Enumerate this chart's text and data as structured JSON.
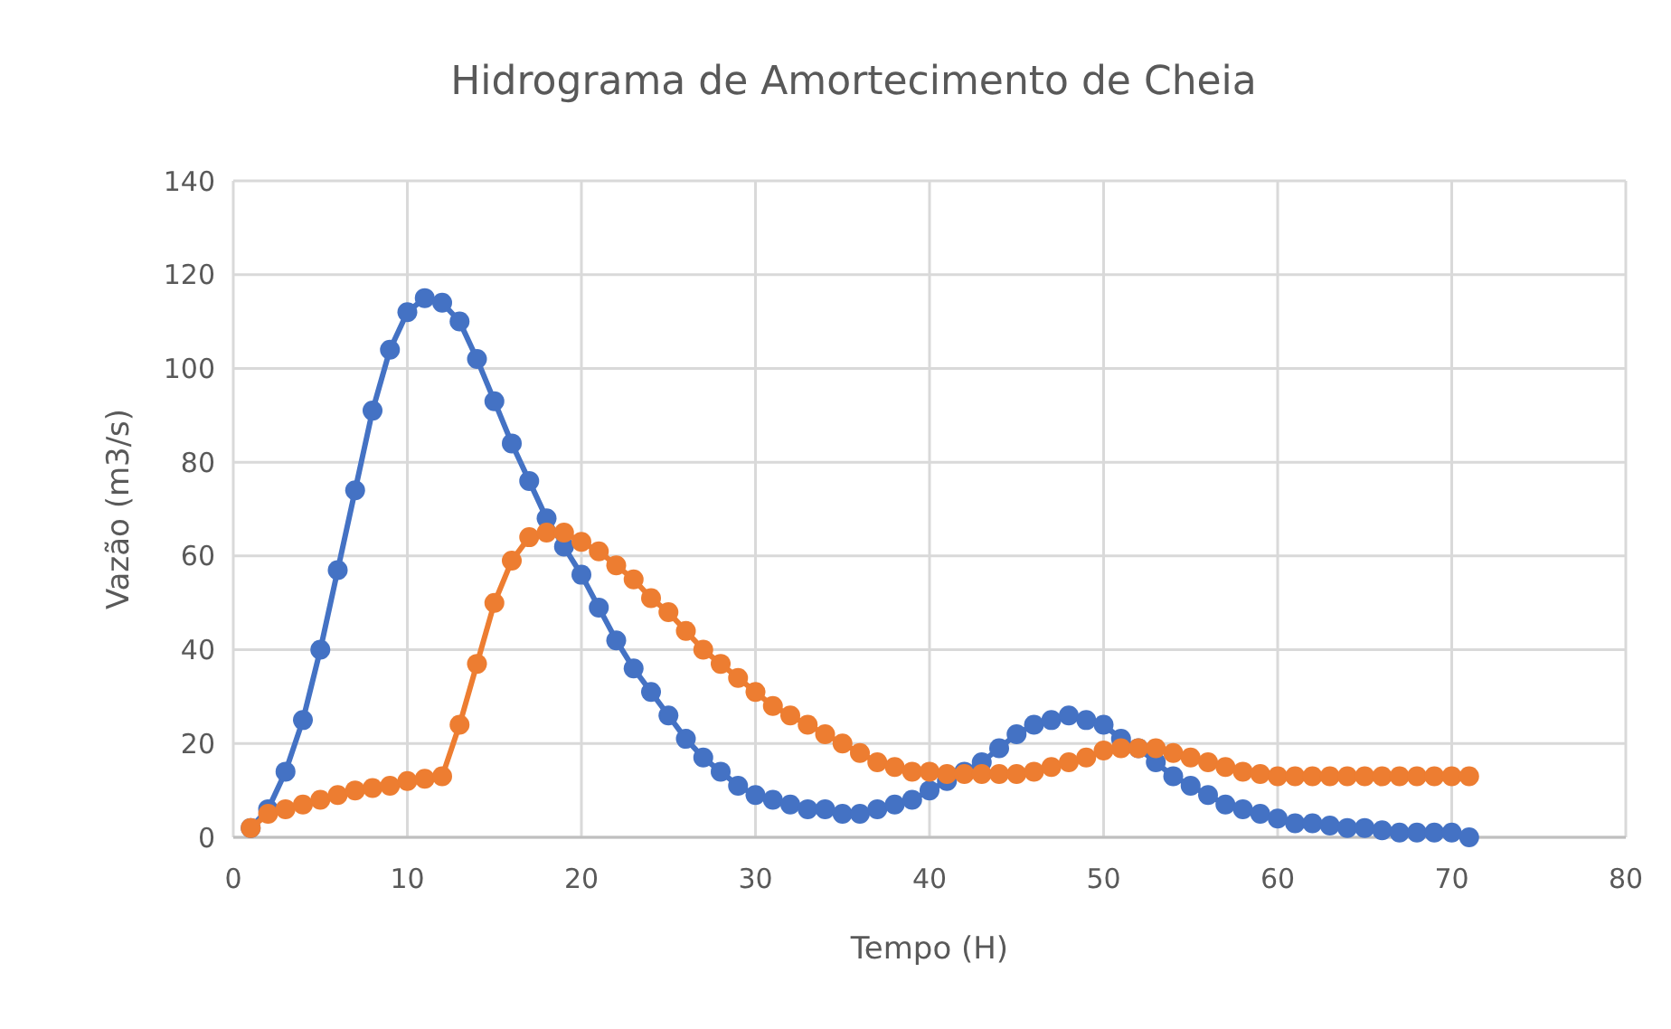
{
  "chart_data": {
    "type": "line",
    "title": "Hidrograma de Amortecimento de Cheia",
    "xlabel": "Tempo (H)",
    "ylabel": "Vazão (m3/s)",
    "x": [
      1,
      2,
      3,
      4,
      5,
      6,
      7,
      8,
      9,
      10,
      11,
      12,
      13,
      14,
      15,
      16,
      17,
      18,
      19,
      20,
      21,
      22,
      23,
      24,
      25,
      26,
      27,
      28,
      29,
      30,
      31,
      32,
      33,
      34,
      35,
      36,
      37,
      38,
      39,
      40,
      41,
      42,
      43,
      44,
      45,
      46,
      47,
      48,
      49,
      50,
      51,
      52,
      53,
      54,
      55,
      56,
      57,
      58,
      59,
      60,
      61,
      62,
      63,
      64,
      65,
      66,
      67,
      68,
      69,
      70,
      71
    ],
    "series": [
      {
        "color": "#4472c4",
        "values": [
          2,
          6,
          14,
          25,
          40,
          57,
          74,
          91,
          104,
          112,
          115,
          114,
          110,
          102,
          93,
          84,
          76,
          68,
          62,
          56,
          49,
          42,
          36,
          31,
          26,
          21,
          17,
          14,
          11,
          9,
          8,
          7,
          6,
          6,
          5,
          5,
          6,
          7,
          8,
          10,
          12,
          14,
          16,
          19,
          22,
          24,
          25,
          26,
          25,
          24,
          21,
          19,
          16,
          13,
          11,
          9,
          7,
          6,
          5,
          4,
          3,
          3,
          2.5,
          2,
          2,
          1.5,
          1,
          1,
          1,
          1,
          0
        ]
      },
      {
        "color": "#ed7d31",
        "values": [
          2,
          5,
          6,
          7,
          8,
          9,
          10,
          10.5,
          11,
          12,
          12.5,
          13,
          24,
          37,
          50,
          59,
          64,
          65,
          65,
          63,
          61,
          58,
          55,
          51,
          48,
          44,
          40,
          37,
          34,
          31,
          28,
          26,
          24,
          22,
          20,
          18,
          16,
          15,
          14,
          14,
          13.5,
          13.5,
          13.5,
          13.5,
          13.5,
          14,
          15,
          16,
          17,
          18.5,
          19,
          19,
          19,
          18,
          17,
          16,
          15,
          14,
          13.5,
          13,
          13,
          13,
          13,
          13,
          13,
          13,
          13,
          13,
          13,
          13,
          13
        ]
      }
    ],
    "xlim": [
      0,
      80
    ],
    "xticks": [
      0,
      10,
      20,
      30,
      40,
      50,
      60,
      70,
      80
    ],
    "ylim": [
      0,
      140
    ],
    "yticks": [
      0,
      20,
      40,
      60,
      80,
      100,
      120,
      140
    ],
    "grid": true,
    "marker": "circle",
    "line_style": "solid"
  }
}
